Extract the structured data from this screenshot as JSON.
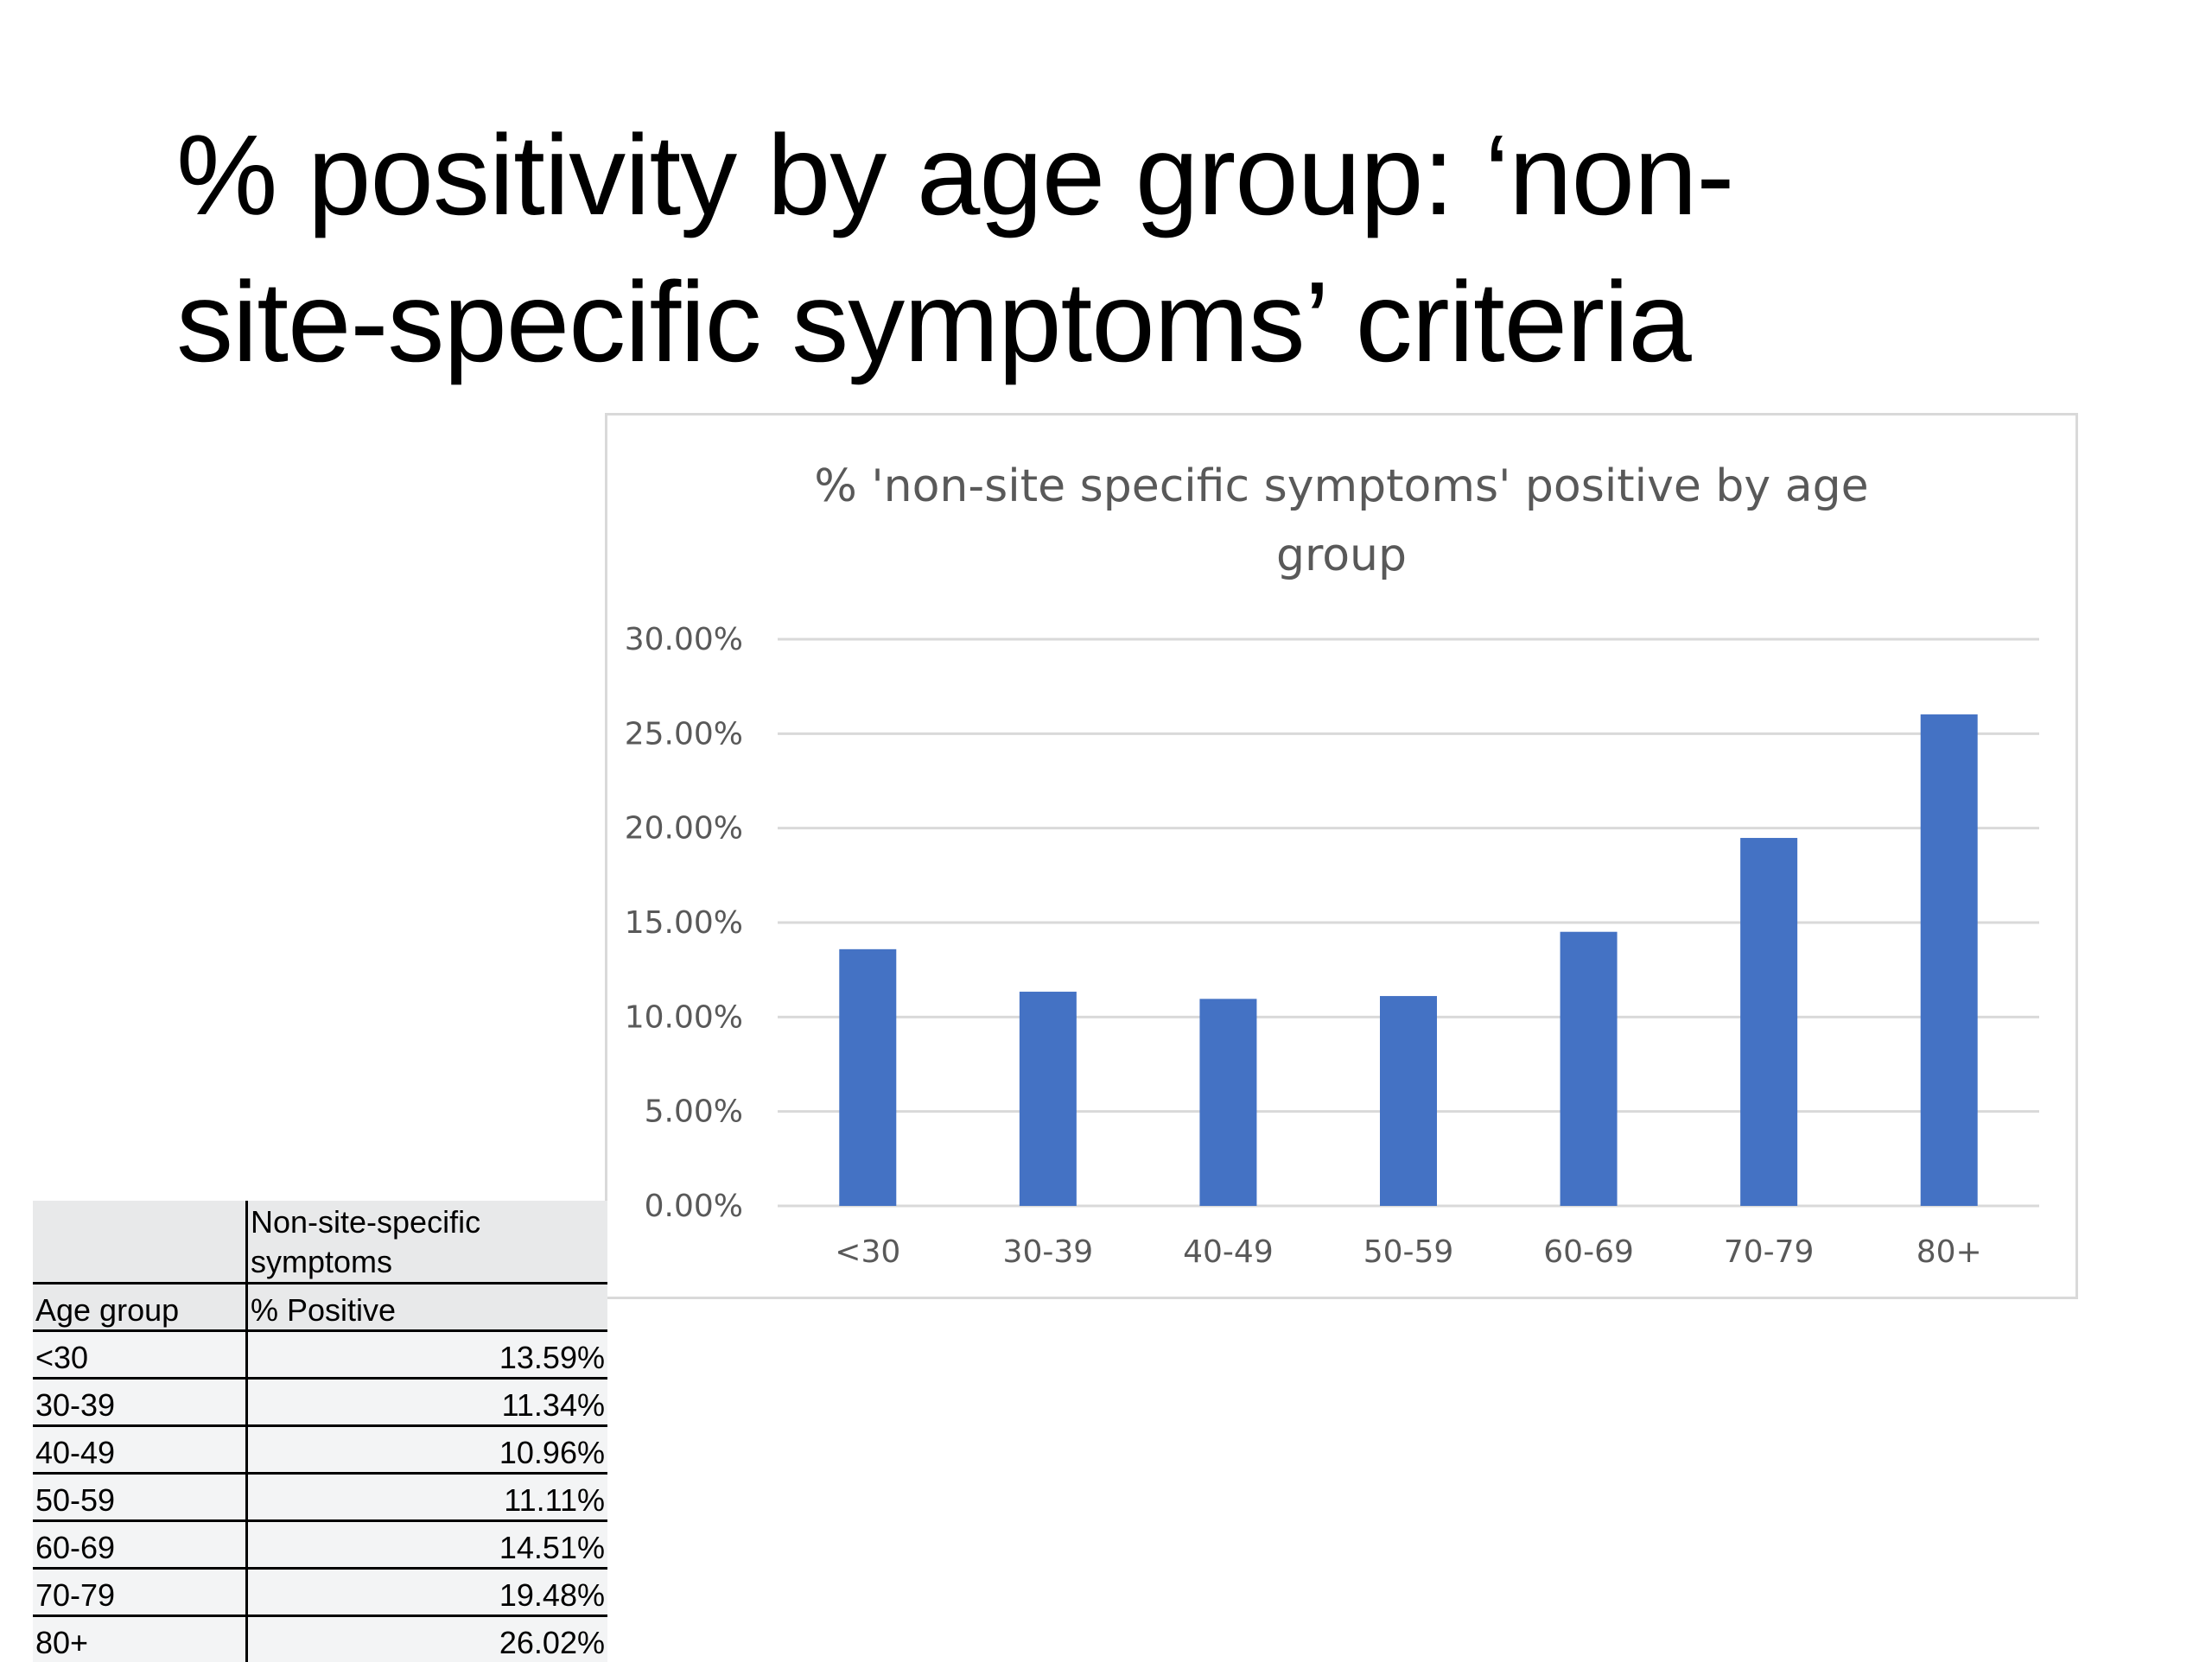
{
  "slide": {
    "title_line1": "% positivity by age group: ‘non-",
    "title_line2": "site-specific symptoms’ criteria"
  },
  "table": {
    "header_top": "Non-site-specific symptoms",
    "header_col1": "Age group",
    "header_col2": "% Positive",
    "rows": [
      {
        "age": "<30",
        "value": "13.59%"
      },
      {
        "age": "30-39",
        "value": "11.34%"
      },
      {
        "age": "40-49",
        "value": "10.96%"
      },
      {
        "age": "50-59",
        "value": "11.11%"
      },
      {
        "age": "60-69",
        "value": "14.51%"
      },
      {
        "age": "70-79",
        "value": "19.48%"
      },
      {
        "age": "80+",
        "value": "26.02%"
      }
    ]
  },
  "chart_data": {
    "type": "bar",
    "title_line1": "% 'non-site specific symptoms' positive by age",
    "title_line2": "group",
    "categories": [
      "<30",
      "30-39",
      "40-49",
      "50-59",
      "60-69",
      "70-79",
      "80+"
    ],
    "values": [
      13.59,
      11.34,
      10.96,
      11.11,
      14.51,
      19.48,
      26.02
    ],
    "y_ticks": [
      "0.00%",
      "5.00%",
      "10.00%",
      "15.00%",
      "20.00%",
      "25.00%",
      "30.00%"
    ],
    "ylim": [
      0,
      30
    ],
    "grid": true,
    "legend": "none",
    "bar_color": "#4472c4",
    "grid_color": "#d9d9d9",
    "text_color": "#595959"
  }
}
